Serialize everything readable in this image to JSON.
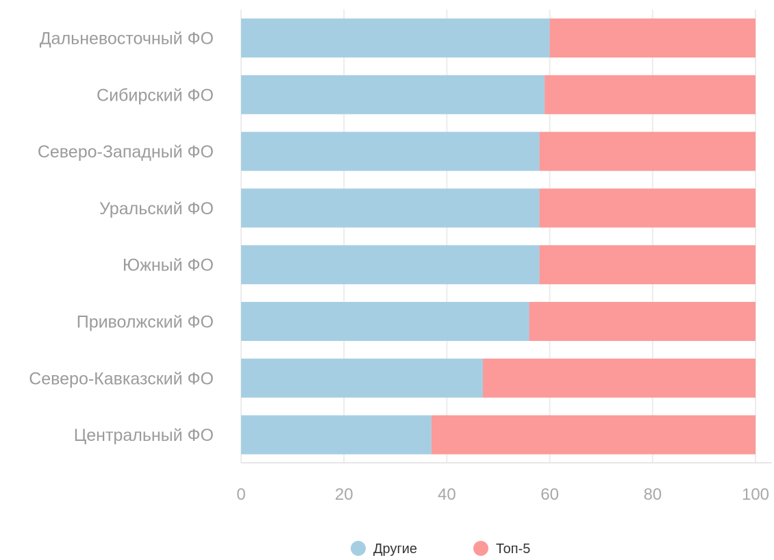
{
  "chart_data": {
    "type": "bar",
    "orientation": "horizontal",
    "stacked": true,
    "categories": [
      "Дальневосточный ФО",
      "Сибирский ФО",
      "Северо-Западный ФО",
      "Уральский ФО",
      "Южный ФО",
      "Приволжский ФО",
      "Северо-Кавказский ФО",
      "Центральный ФО"
    ],
    "series": [
      {
        "name": "Другие",
        "color": "#a6cee3",
        "values": [
          60,
          59,
          58,
          58,
          58,
          56,
          47,
          37
        ]
      },
      {
        "name": "Топ-5",
        "color": "#fb9a99",
        "values": [
          40,
          41,
          42,
          42,
          42,
          44,
          53,
          63
        ]
      }
    ],
    "xlim": [
      0,
      100
    ],
    "xticks": [
      "0",
      "20",
      "40",
      "60",
      "80",
      "100"
    ],
    "xtick_values": [
      0,
      20,
      40,
      60,
      80,
      100
    ],
    "grid": true,
    "legend_position": "bottom"
  }
}
